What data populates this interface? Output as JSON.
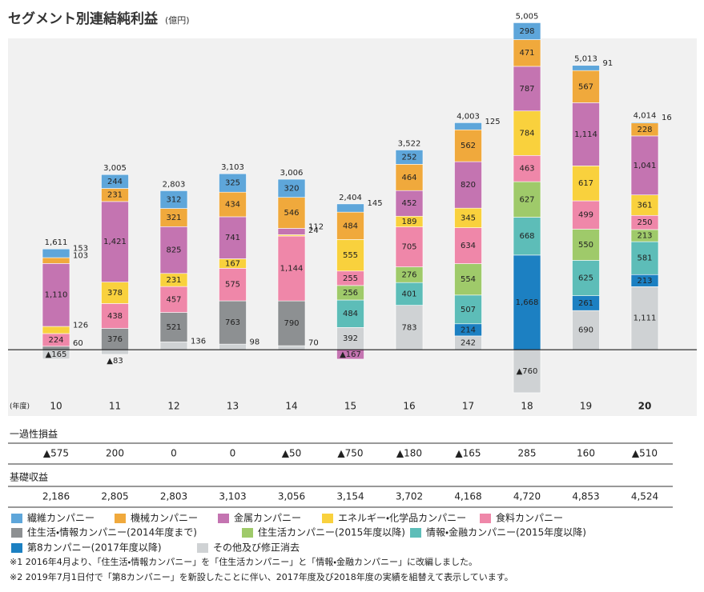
{
  "chart_data": {
    "type": "stacked_bar",
    "title": "セグメント別連結純利益",
    "subtitle": "(億円)",
    "x_label": "(年度)",
    "categories": [
      "10",
      "11",
      "12",
      "13",
      "14",
      "15",
      "16",
      "17",
      "18",
      "19",
      "20"
    ],
    "ylim": [
      -1170,
      5490
    ],
    "series": [
      {
        "name": "繊維カンパニー",
        "color": "#5ea6da",
        "values": [
          153,
          244,
          312,
          325,
          320,
          145,
          252,
          125,
          298,
          91,
          16
        ],
        "value_labels": [
          "153",
          "244",
          "312",
          "325",
          "320",
          "145",
          "252",
          "125",
          "298",
          "91",
          "16"
        ]
      },
      {
        "name": "機械カンパニー",
        "color": "#f0a93c",
        "values": [
          103,
          231,
          321,
          434,
          546,
          484,
          464,
          562,
          471,
          567,
          228
        ],
        "value_labels": [
          "103",
          "231",
          "321",
          "434",
          "546",
          "484",
          "464",
          "562",
          "471",
          "567",
          "228"
        ]
      },
      {
        "name": "金属カンパニー",
        "color": "#c474b1",
        "values": [
          1110,
          1421,
          825,
          741,
          112,
          -167,
          452,
          820,
          787,
          1114,
          1041
        ],
        "value_labels": [
          "1,110",
          "1,421",
          "825",
          "741",
          "112",
          "▲167",
          "452",
          "820",
          "787",
          "1,114",
          "1,041"
        ]
      },
      {
        "name": "エネルギー・化学品カンパニー",
        "color": "#f9d13d",
        "values": [
          126,
          378,
          231,
          167,
          24,
          555,
          189,
          345,
          784,
          617,
          361
        ],
        "value_labels": [
          "126",
          "378",
          "231",
          "167",
          "24",
          "555",
          "189",
          "345",
          "784",
          "617",
          "361"
        ]
      },
      {
        "name": "食料カンパニー",
        "color": "#ef87a9",
        "values": [
          224,
          438,
          457,
          575,
          1144,
          255,
          705,
          634,
          463,
          499,
          250
        ],
        "value_labels": [
          "224",
          "438",
          "457",
          "575",
          "1,144",
          "255",
          "705",
          "634",
          "463",
          "499",
          "250"
        ]
      },
      {
        "name": "住生活・情報カンパニー(2014年度まで)",
        "color": "#8d9092",
        "values": [
          60,
          376,
          521,
          763,
          790,
          null,
          null,
          null,
          null,
          null,
          null
        ],
        "value_labels": [
          "60",
          "376",
          "521",
          "763",
          "790",
          null,
          null,
          null,
          null,
          null,
          null
        ]
      },
      {
        "name": "住生活カンパニー(2015年度以降)",
        "color": "#9fca6a",
        "values": [
          null,
          null,
          null,
          null,
          null,
          256,
          276,
          554,
          627,
          550,
          213
        ],
        "value_labels": [
          null,
          null,
          null,
          null,
          null,
          "256",
          "276",
          "554",
          "627",
          "550",
          "213"
        ]
      },
      {
        "name": "情報・金融カンパニー(2015年度以降)",
        "color": "#5dbdb8",
        "values": [
          null,
          null,
          null,
          null,
          null,
          484,
          401,
          507,
          668,
          625,
          581
        ],
        "value_labels": [
          null,
          null,
          null,
          null,
          null,
          "484",
          "401",
          "507",
          "668",
          "625",
          "581"
        ]
      },
      {
        "name": "第8カンパニー(2017年度以降)",
        "color": "#1c80c2",
        "values": [
          null,
          null,
          null,
          null,
          null,
          null,
          null,
          214,
          1668,
          261,
          213
        ],
        "value_labels": [
          null,
          null,
          null,
          null,
          null,
          null,
          null,
          "214",
          "1,668",
          "261",
          "213"
        ]
      },
      {
        "name": "その他及び修正消去",
        "color": "#cfd2d4",
        "values": [
          -165,
          -83,
          136,
          98,
          70,
          392,
          783,
          242,
          -760,
          690,
          1111
        ],
        "value_labels": [
          "▲165",
          "▲83",
          "136",
          "98",
          "70",
          "392",
          "783",
          "242",
          "▲760",
          "690",
          "1,111"
        ]
      }
    ],
    "totals": {
      "values": [
        1611,
        3005,
        2803,
        3103,
        3006,
        2404,
        3522,
        4003,
        5005,
        5013,
        4014
      ],
      "value_labels": [
        "1,611",
        "3,005",
        "2,803",
        "3,103",
        "3,006",
        "2,404",
        "3,522",
        "4,003",
        "5,005",
        "5,013",
        "4,014"
      ]
    },
    "tables": [
      {
        "label": "一過性損益",
        "cells": [
          "▲575",
          "200",
          "0",
          "0",
          "▲50",
          "▲750",
          "▲180",
          "▲165",
          "285",
          "160",
          "▲510"
        ]
      },
      {
        "label": "基礎収益",
        "cells": [
          "2,186",
          "2,805",
          "2,803",
          "3,103",
          "3,056",
          "3,154",
          "3,702",
          "4,168",
          "4,720",
          "4,853",
          "4,524"
        ]
      }
    ],
    "notes": [
      "※1 2016年4月より、「住生活・情報カンパニー」を「住生活カンパニー」と「情報・金融カンパニー」に改編しました。",
      "※2 2019年7月1日付で「第8カンパニー」を新設したことに伴い、2017年度及び2018年度の実績を組替えて表示しています。"
    ]
  }
}
